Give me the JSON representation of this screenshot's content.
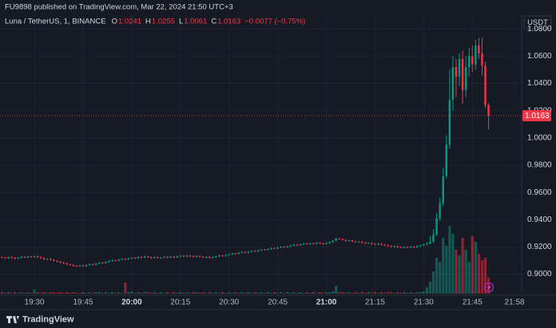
{
  "header": {
    "publisher": "FU9898 published on TradingView.com, Mar 22, 2024 21:50 UTC+3",
    "footer": "TradingView"
  },
  "chart_data": {
    "type": "candlestick",
    "title": "Luna / TetherUS, 1, BINANCE",
    "ohlc_labels": [
      "O",
      "H",
      "L",
      "C"
    ],
    "change": "−0.0077 (−0.75%)",
    "currency": "USDT",
    "up_color": "#089981",
    "down_color": "#f23645",
    "grid": true,
    "xlim": [
      1159.4,
      1320.2
    ],
    "xticks": [
      {
        "value": 1170,
        "label": "19:30"
      },
      {
        "value": 1185,
        "label": "19:45"
      },
      {
        "value": 1200,
        "label": "20:00"
      },
      {
        "value": 1215,
        "label": "20:15"
      },
      {
        "value": 1230,
        "label": "20:30"
      },
      {
        "value": 1245,
        "label": "20:45"
      },
      {
        "value": 1260,
        "label": "21:00"
      },
      {
        "value": 1275,
        "label": "21:15"
      },
      {
        "value": 1290,
        "label": "21:30"
      },
      {
        "value": 1305,
        "label": "21:45"
      },
      {
        "value": 1318,
        "label": "21:58"
      }
    ],
    "ylim": [
      0.8845,
      1.0907
    ],
    "yticks": [
      {
        "value": 0.9,
        "label": "0.9000"
      },
      {
        "value": 0.92,
        "label": "0.9200"
      },
      {
        "value": 0.94,
        "label": "0.9400"
      },
      {
        "value": 0.96,
        "label": "0.9600"
      },
      {
        "value": 0.98,
        "label": "0.9800"
      },
      {
        "value": 1.0,
        "label": "1.0000"
      },
      {
        "value": 1.02,
        "label": "1.0200"
      },
      {
        "value": 1.04,
        "label": "1.0400"
      },
      {
        "value": 1.06,
        "label": "1.0600"
      },
      {
        "value": 1.08,
        "label": "1.0800"
      }
    ],
    "x": [
      1160,
      1161,
      1162,
      1163,
      1164,
      1165,
      1166,
      1167,
      1168,
      1169,
      1170,
      1171,
      1172,
      1173,
      1174,
      1175,
      1176,
      1177,
      1178,
      1179,
      1180,
      1181,
      1182,
      1183,
      1184,
      1185,
      1186,
      1187,
      1188,
      1189,
      1190,
      1191,
      1192,
      1193,
      1194,
      1195,
      1196,
      1197,
      1198,
      1199,
      1200,
      1201,
      1202,
      1203,
      1204,
      1205,
      1206,
      1207,
      1208,
      1209,
      1210,
      1211,
      1212,
      1213,
      1214,
      1215,
      1216,
      1217,
      1218,
      1219,
      1220,
      1221,
      1222,
      1223,
      1224,
      1225,
      1226,
      1227,
      1228,
      1229,
      1230,
      1231,
      1232,
      1233,
      1234,
      1235,
      1236,
      1237,
      1238,
      1239,
      1240,
      1241,
      1242,
      1243,
      1244,
      1245,
      1246,
      1247,
      1248,
      1249,
      1250,
      1251,
      1252,
      1253,
      1254,
      1255,
      1256,
      1257,
      1258,
      1259,
      1260,
      1261,
      1262,
      1263,
      1264,
      1265,
      1266,
      1267,
      1268,
      1269,
      1270,
      1271,
      1272,
      1273,
      1274,
      1275,
      1276,
      1277,
      1278,
      1279,
      1280,
      1281,
      1282,
      1283,
      1284,
      1285,
      1286,
      1287,
      1288,
      1289,
      1290,
      1291,
      1292,
      1293,
      1294,
      1295,
      1296,
      1297,
      1298,
      1299,
      1300,
      1301,
      1302,
      1303,
      1304,
      1305,
      1306,
      1307,
      1308,
      1309,
      1310
    ],
    "candles": [
      [
        0.9125,
        0.913,
        0.9117,
        0.9122
      ],
      [
        0.9122,
        0.9127,
        0.9113,
        0.9118
      ],
      [
        0.9118,
        0.913,
        0.9113,
        0.9125
      ],
      [
        0.9125,
        0.913,
        0.9115,
        0.912
      ],
      [
        0.912,
        0.9125,
        0.911,
        0.9115
      ],
      [
        0.9115,
        0.9126,
        0.911,
        0.9121
      ],
      [
        0.9121,
        0.9132,
        0.9116,
        0.9127
      ],
      [
        0.9127,
        0.9132,
        0.9118,
        0.9123
      ],
      [
        0.9123,
        0.9135,
        0.9118,
        0.913
      ],
      [
        0.913,
        0.9135,
        0.9121,
        0.9126
      ],
      [
        0.9126,
        0.9136,
        0.9121,
        0.9131
      ],
      [
        0.9131,
        0.9136,
        0.9119,
        0.9124
      ],
      [
        0.9124,
        0.9129,
        0.9113,
        0.9118
      ],
      [
        0.9118,
        0.9123,
        0.9105,
        0.911
      ],
      [
        0.911,
        0.9117,
        0.9105,
        0.9112
      ],
      [
        0.9112,
        0.9117,
        0.91,
        0.9105
      ],
      [
        0.9105,
        0.911,
        0.9093,
        0.9098
      ],
      [
        0.9098,
        0.9103,
        0.9087,
        0.9092
      ],
      [
        0.9092,
        0.9097,
        0.908,
        0.9085
      ],
      [
        0.9085,
        0.909,
        0.9074,
        0.9079
      ],
      [
        0.9079,
        0.9084,
        0.9067,
        0.9072
      ],
      [
        0.9072,
        0.9077,
        0.9063,
        0.9068
      ],
      [
        0.9068,
        0.9073,
        0.9056,
        0.9061
      ],
      [
        0.9061,
        0.9066,
        0.9053,
        0.9058
      ],
      [
        0.9058,
        0.9069,
        0.9053,
        0.9064
      ],
      [
        0.9064,
        0.9069,
        0.9054,
        0.9059
      ],
      [
        0.9059,
        0.9071,
        0.9054,
        0.9066
      ],
      [
        0.9066,
        0.9077,
        0.9061,
        0.9072
      ],
      [
        0.9072,
        0.9077,
        0.9064,
        0.9069
      ],
      [
        0.9069,
        0.9083,
        0.9064,
        0.9078
      ],
      [
        0.9078,
        0.909,
        0.9073,
        0.9085
      ],
      [
        0.9085,
        0.909,
        0.9076,
        0.9081
      ],
      [
        0.9081,
        0.9095,
        0.9076,
        0.909
      ],
      [
        0.909,
        0.9101,
        0.9085,
        0.9096
      ],
      [
        0.9096,
        0.9107,
        0.9091,
        0.9102
      ],
      [
        0.9102,
        0.9107,
        0.9093,
        0.9098
      ],
      [
        0.9098,
        0.9112,
        0.9093,
        0.9107
      ],
      [
        0.9107,
        0.9117,
        0.9102,
        0.9112
      ],
      [
        0.9112,
        0.9117,
        0.9103,
        0.9108
      ],
      [
        0.9108,
        0.912,
        0.9103,
        0.9115
      ],
      [
        0.9115,
        0.9126,
        0.911,
        0.9121
      ],
      [
        0.9121,
        0.9126,
        0.9112,
        0.9117
      ],
      [
        0.9117,
        0.9131,
        0.9112,
        0.9126
      ],
      [
        0.9126,
        0.9131,
        0.9117,
        0.9122
      ],
      [
        0.9122,
        0.9135,
        0.9117,
        0.913
      ],
      [
        0.913,
        0.9135,
        0.9119,
        0.9124
      ],
      [
        0.9124,
        0.9129,
        0.9114,
        0.9119
      ],
      [
        0.9119,
        0.913,
        0.9114,
        0.9125
      ],
      [
        0.9125,
        0.913,
        0.9113,
        0.9118
      ],
      [
        0.9118,
        0.9127,
        0.9113,
        0.9122
      ],
      [
        0.9122,
        0.9132,
        0.9117,
        0.9127
      ],
      [
        0.9127,
        0.9132,
        0.9116,
        0.9121
      ],
      [
        0.9121,
        0.9133,
        0.9116,
        0.9128
      ],
      [
        0.9128,
        0.9133,
        0.9119,
        0.9124
      ],
      [
        0.9124,
        0.9136,
        0.9119,
        0.9131
      ],
      [
        0.9131,
        0.914,
        0.9126,
        0.9135
      ],
      [
        0.9135,
        0.914,
        0.9124,
        0.9129
      ],
      [
        0.9129,
        0.9141,
        0.9124,
        0.9136
      ],
      [
        0.9136,
        0.9141,
        0.9127,
        0.9132
      ],
      [
        0.9132,
        0.9137,
        0.9122,
        0.9127
      ],
      [
        0.9127,
        0.9138,
        0.9122,
        0.9133
      ],
      [
        0.9133,
        0.9138,
        0.9123,
        0.9128
      ],
      [
        0.9128,
        0.9133,
        0.9117,
        0.9122
      ],
      [
        0.9122,
        0.9132,
        0.9117,
        0.9127
      ],
      [
        0.9127,
        0.9132,
        0.9115,
        0.912
      ],
      [
        0.912,
        0.913,
        0.9115,
        0.9125
      ],
      [
        0.9125,
        0.9136,
        0.912,
        0.9131
      ],
      [
        0.9131,
        0.9142,
        0.9126,
        0.9137
      ],
      [
        0.9137,
        0.9142,
        0.9129,
        0.9134
      ],
      [
        0.9134,
        0.9145,
        0.9129,
        0.914
      ],
      [
        0.914,
        0.9151,
        0.9135,
        0.9146
      ],
      [
        0.9146,
        0.9157,
        0.9141,
        0.9152
      ],
      [
        0.9152,
        0.9157,
        0.9144,
        0.9149
      ],
      [
        0.9149,
        0.9162,
        0.9144,
        0.9157
      ],
      [
        0.9157,
        0.9167,
        0.9152,
        0.9162
      ],
      [
        0.9162,
        0.9167,
        0.9153,
        0.9158
      ],
      [
        0.9158,
        0.917,
        0.9153,
        0.9165
      ],
      [
        0.9165,
        0.9176,
        0.916,
        0.9171
      ],
      [
        0.9171,
        0.9176,
        0.9163,
        0.9168
      ],
      [
        0.9168,
        0.918,
        0.9163,
        0.9175
      ],
      [
        0.9175,
        0.9186,
        0.917,
        0.9181
      ],
      [
        0.9181,
        0.9186,
        0.9173,
        0.9178
      ],
      [
        0.9178,
        0.919,
        0.9173,
        0.9185
      ],
      [
        0.9185,
        0.9196,
        0.918,
        0.9191
      ],
      [
        0.9191,
        0.9196,
        0.9183,
        0.9188
      ],
      [
        0.9188,
        0.92,
        0.9183,
        0.9195
      ],
      [
        0.9195,
        0.9206,
        0.919,
        0.9201
      ],
      [
        0.9201,
        0.9206,
        0.9193,
        0.9198
      ],
      [
        0.9198,
        0.9209,
        0.9193,
        0.9204
      ],
      [
        0.9204,
        0.9215,
        0.9199,
        0.921
      ],
      [
        0.921,
        0.9221,
        0.9205,
        0.9216
      ],
      [
        0.9216,
        0.9221,
        0.9207,
        0.9212
      ],
      [
        0.9212,
        0.9224,
        0.9207,
        0.9219
      ],
      [
        0.9219,
        0.9229,
        0.9214,
        0.9224
      ],
      [
        0.9224,
        0.9229,
        0.9216,
        0.9221
      ],
      [
        0.9221,
        0.9232,
        0.9216,
        0.9227
      ],
      [
        0.9227,
        0.9232,
        0.9218,
        0.9223
      ],
      [
        0.9223,
        0.9235,
        0.9218,
        0.923
      ],
      [
        0.923,
        0.9235,
        0.9221,
        0.9226
      ],
      [
        0.9226,
        0.9231,
        0.9216,
        0.9221
      ],
      [
        0.9221,
        0.9233,
        0.9216,
        0.9228
      ],
      [
        0.9228,
        0.924,
        0.9223,
        0.9235
      ],
      [
        0.9235,
        0.9251,
        0.923,
        0.9246
      ],
      [
        0.9246,
        0.9268,
        0.9241,
        0.9262
      ],
      [
        0.9262,
        0.9267,
        0.9253,
        0.9258
      ],
      [
        0.9258,
        0.9263,
        0.9246,
        0.9251
      ],
      [
        0.9251,
        0.9256,
        0.9239,
        0.9244
      ],
      [
        0.9244,
        0.9253,
        0.9239,
        0.9248
      ],
      [
        0.9248,
        0.9253,
        0.9235,
        0.924
      ],
      [
        0.924,
        0.9245,
        0.923,
        0.9235
      ],
      [
        0.9235,
        0.9243,
        0.923,
        0.9238
      ],
      [
        0.9238,
        0.9243,
        0.9226,
        0.9231
      ],
      [
        0.9231,
        0.9236,
        0.9221,
        0.9226
      ],
      [
        0.9226,
        0.9234,
        0.9221,
        0.9229
      ],
      [
        0.9229,
        0.9234,
        0.9217,
        0.9222
      ],
      [
        0.9222,
        0.9227,
        0.9213,
        0.9218
      ],
      [
        0.9218,
        0.9228,
        0.9213,
        0.9223
      ],
      [
        0.9223,
        0.9228,
        0.9211,
        0.9216
      ],
      [
        0.9216,
        0.9221,
        0.9207,
        0.9212
      ],
      [
        0.9212,
        0.9217,
        0.9201,
        0.9206
      ],
      [
        0.9206,
        0.9211,
        0.9196,
        0.9201
      ],
      [
        0.9201,
        0.921,
        0.9196,
        0.9205
      ],
      [
        0.9205,
        0.921,
        0.9193,
        0.9198
      ],
      [
        0.9198,
        0.9203,
        0.9189,
        0.9194
      ],
      [
        0.9194,
        0.9204,
        0.9189,
        0.9199
      ],
      [
        0.9199,
        0.9204,
        0.919,
        0.9195
      ],
      [
        0.9195,
        0.9207,
        0.919,
        0.9202
      ],
      [
        0.9202,
        0.9207,
        0.9193,
        0.9198
      ],
      [
        0.9198,
        0.9211,
        0.9193,
        0.9206
      ],
      [
        0.9206,
        0.9216,
        0.9201,
        0.9211
      ],
      [
        0.9211,
        0.9223,
        0.9206,
        0.9218
      ],
      [
        0.9218,
        0.9235,
        0.9213,
        0.9225
      ],
      [
        0.9225,
        0.928,
        0.922,
        0.9238
      ],
      [
        0.9238,
        0.933,
        0.923,
        0.929
      ],
      [
        0.929,
        0.945,
        0.928,
        0.941
      ],
      [
        0.941,
        0.956,
        0.939,
        0.952
      ],
      [
        0.952,
        0.978,
        0.95,
        0.972
      ],
      [
        0.972,
        1.002,
        0.97,
        0.995
      ],
      [
        0.995,
        1.05,
        0.992,
        1.028
      ],
      [
        1.028,
        1.06,
        1.02,
        1.052
      ],
      [
        1.052,
        1.058,
        1.03,
        1.045
      ],
      [
        1.045,
        1.062,
        1.038,
        1.058
      ],
      [
        1.058,
        1.064,
        1.025,
        1.035
      ],
      [
        1.035,
        1.06,
        1.03,
        1.052
      ],
      [
        1.052,
        1.066,
        1.045,
        1.06
      ],
      [
        1.06,
        1.068,
        1.048,
        1.054
      ],
      [
        1.054,
        1.072,
        1.05,
        1.068
      ],
      [
        1.068,
        1.0735,
        1.058,
        1.062
      ],
      [
        1.062,
        1.0735,
        1.046,
        1.053
      ],
      [
        1.053,
        1.056,
        1.022,
        1.0241
      ],
      [
        1.0241,
        1.0255,
        1.0061,
        1.0163
      ]
    ],
    "volumes": [
      2,
      1,
      2,
      1,
      2,
      1,
      2,
      1,
      2,
      1,
      5,
      2,
      1,
      2,
      1,
      2,
      2,
      1,
      2,
      1,
      2,
      1,
      2,
      1,
      1,
      2,
      1,
      2,
      1,
      2,
      2,
      1,
      2,
      1,
      2,
      1,
      2,
      1,
      14,
      2,
      3,
      1,
      2,
      1,
      2,
      2,
      1,
      2,
      1,
      2,
      1,
      2,
      1,
      2,
      1,
      2,
      1,
      2,
      1,
      2,
      2,
      1,
      2,
      1,
      2,
      1,
      2,
      1,
      2,
      1,
      2,
      1,
      2,
      1,
      2,
      1,
      2,
      1,
      2,
      1,
      2,
      1,
      2,
      1,
      2,
      1,
      2,
      1,
      2,
      1,
      2,
      1,
      2,
      1,
      2,
      1,
      2,
      1,
      2,
      1,
      2,
      2,
      3,
      10,
      2,
      2,
      1,
      2,
      1,
      2,
      1,
      2,
      1,
      2,
      1,
      2,
      1,
      2,
      1,
      2,
      2,
      1,
      2,
      1,
      2,
      1,
      2,
      1,
      2,
      2,
      3,
      8,
      15,
      28,
      45,
      40,
      70,
      60,
      85,
      75,
      55,
      48,
      70,
      55,
      40,
      72,
      65,
      50,
      42,
      45,
      20
    ]
  }
}
